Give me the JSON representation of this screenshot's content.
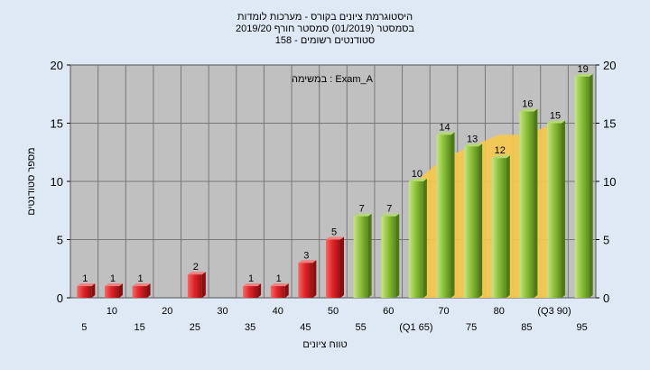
{
  "chart_data": {
    "type": "bar",
    "title_lines": [
      "היסטוגרמת ציונים בקורס - מערכות לומדות",
      "בסמסטר  (01/2019)  סמסטר חורף 2019/20",
      "סטודנטים רשומים - 158"
    ],
    "annotation": "במשימה : Exam_A",
    "xlabel": "טווח ציונים",
    "ylabel": "מספר סטודנטים",
    "ylim": [
      0,
      20
    ],
    "yticks": [
      0,
      5,
      10,
      15,
      20
    ],
    "categories": [
      "5",
      "10",
      "15",
      "20",
      "25",
      "30",
      "35",
      "40",
      "45",
      "50",
      "55",
      "60",
      "(Q1 65)",
      "70",
      "75",
      "80",
      "85",
      "(Q3 90)",
      "95"
    ],
    "values": [
      1,
      1,
      1,
      0,
      2,
      0,
      1,
      1,
      3,
      5,
      7,
      7,
      10,
      14,
      13,
      12,
      16,
      15,
      19
    ],
    "bar_colors": {
      "fail": "#e0262a",
      "pass": "#8fc43c"
    },
    "pass_from_index": 10,
    "area_band": {
      "color": "#f6c84a",
      "from_index": 12,
      "to_index": 17,
      "values": [
        10,
        12,
        13,
        14,
        14,
        15
      ]
    },
    "grid": true,
    "plot_background": "#c0c0c0"
  }
}
